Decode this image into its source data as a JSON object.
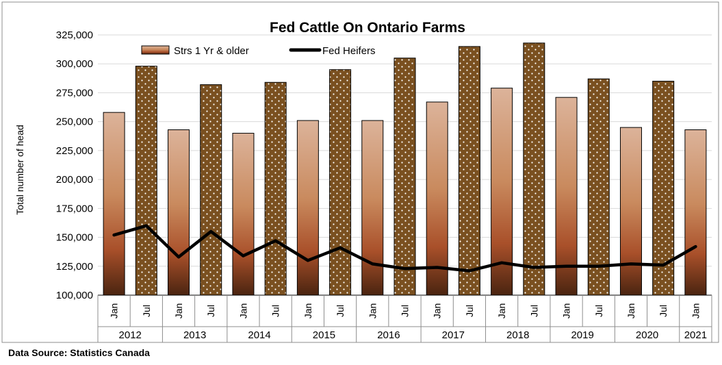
{
  "chart_data": {
    "type": "bar",
    "title": "Fed Cattle On Ontario Farms",
    "ylabel": "Total number of head",
    "xlabel": "",
    "ylim": [
      100000,
      325000
    ],
    "yticks": [
      "100,000",
      "125,000",
      "150,000",
      "175,000",
      "200,000",
      "225,000",
      "250,000",
      "275,000",
      "300,000",
      "325,000"
    ],
    "ytick_values": [
      100000,
      125000,
      150000,
      175000,
      200000,
      225000,
      250000,
      275000,
      300000,
      325000
    ],
    "grid": true,
    "legend_position": "top-left",
    "months": [
      "Jan",
      "Jul",
      "Jan",
      "Jul",
      "Jan",
      "Jul",
      "Jan",
      "Jul",
      "Jan",
      "Jul",
      "Jan",
      "Jul",
      "Jan",
      "Jul",
      "Jan",
      "Jul",
      "Jan",
      "Jul",
      "Jan"
    ],
    "years": [
      {
        "label": "2012",
        "span": 2
      },
      {
        "label": "2013",
        "span": 2
      },
      {
        "label": "2014",
        "span": 2
      },
      {
        "label": "2015",
        "span": 2
      },
      {
        "label": "2016",
        "span": 2
      },
      {
        "label": "2017",
        "span": 2
      },
      {
        "label": "2018",
        "span": 2
      },
      {
        "label": "2019",
        "span": 2
      },
      {
        "label": "2020",
        "span": 2
      },
      {
        "label": "2021",
        "span": 1
      }
    ],
    "series": [
      {
        "name": "Strs 1 Yr & older",
        "kind": "bar",
        "values": [
          258000,
          298000,
          243000,
          282000,
          240000,
          284000,
          251000,
          295000,
          251000,
          305000,
          267000,
          315000,
          279000,
          318000,
          271000,
          287000,
          245000,
          285000,
          243000
        ]
      },
      {
        "name": "Fed Heifers",
        "kind": "line",
        "values": [
          152000,
          160000,
          133000,
          155000,
          134000,
          147000,
          130000,
          141000,
          127000,
          123000,
          124000,
          121000,
          128000,
          124000,
          125000,
          125000,
          127000,
          126000,
          142000
        ]
      }
    ]
  },
  "footer": {
    "source": "Data Source: Statistics Canada"
  },
  "colors": {
    "bar_light": "#dcb39a",
    "bar_mid": "#b85a2e",
    "bar_dark": "#4a2410",
    "bar_dotted": "#7a5020",
    "line": "#000000",
    "grid": "#d9d9d9"
  }
}
